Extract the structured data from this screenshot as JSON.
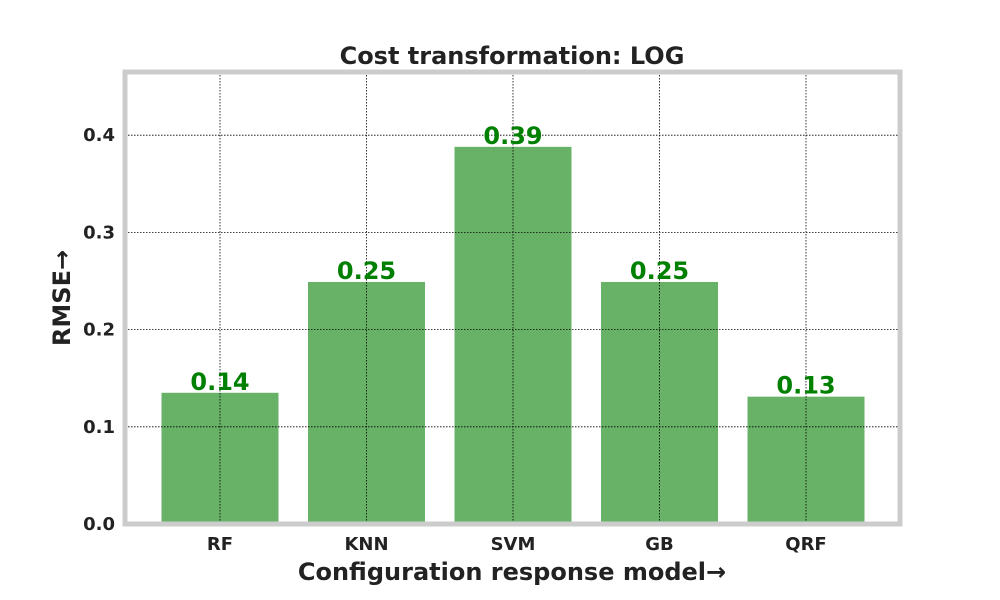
{
  "chart_data": {
    "type": "bar",
    "title": "Cost transformation: LOG",
    "xlabel": "Configuration response model→",
    "ylabel": "RMSE→",
    "categories": [
      "RF",
      "KNN",
      "SVM",
      "GB",
      "QRF"
    ],
    "values": [
      0.135,
      0.249,
      0.388,
      0.249,
      0.131
    ],
    "data_labels": [
      "0.14",
      "0.25",
      "0.39",
      "0.25",
      "0.13"
    ],
    "yticks": [
      0.0,
      0.1,
      0.2,
      0.3,
      0.4
    ],
    "ytick_labels": [
      "0.0",
      "0.1",
      "0.2",
      "0.3",
      "0.4"
    ],
    "ylim": [
      0,
      0.465
    ],
    "grid": true,
    "colors": {
      "bar": "#67b267",
      "data_label": "#008000",
      "frame": "#cccccc",
      "grid": "#000000",
      "text": "#222222"
    }
  }
}
